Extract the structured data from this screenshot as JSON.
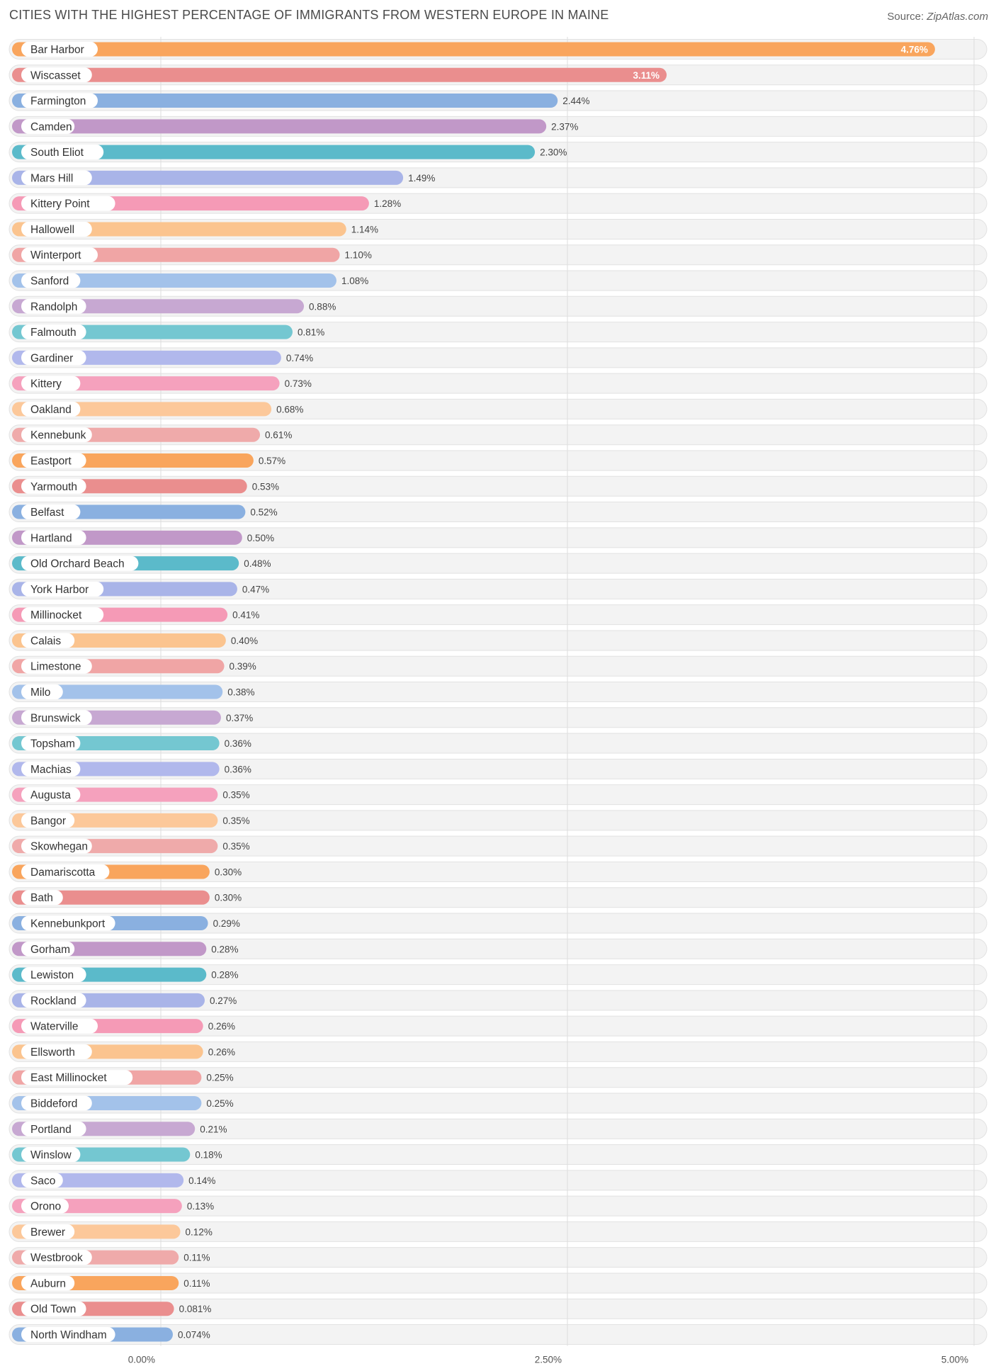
{
  "header": {
    "title": "CITIES WITH THE HIGHEST PERCENTAGE OF IMMIGRANTS FROM WESTERN EUROPE IN MAINE",
    "source_label": "Source:",
    "source_value": "ZipAtlas.com"
  },
  "chart_data": {
    "type": "bar",
    "orientation": "horizontal",
    "title": "CITIES WITH THE HIGHEST PERCENTAGE OF IMMIGRANTS FROM WESTERN EUROPE IN MAINE",
    "xlim": [
      0,
      5
    ],
    "x_ticks": [
      "0.00%",
      "2.50%",
      "5.00%"
    ],
    "x_tick_values": [
      0,
      2.5,
      5
    ],
    "grid": true,
    "palette": [
      "#f9a55d",
      "#ea8e8e",
      "#8ab0e0",
      "#c198c8",
      "#5bbaca",
      "#a9b4e8",
      "#f59ab6",
      "#fbc48f",
      "#f0a5a5",
      "#a3c2ea",
      "#c7a8d2",
      "#74c7d1",
      "#b1b8ec",
      "#f5a1bd",
      "#fcc89a",
      "#efaaaa"
    ],
    "categories": [
      "Bar Harbor",
      "Wiscasset",
      "Farmington",
      "Camden",
      "South Eliot",
      "Mars Hill",
      "Kittery Point",
      "Hallowell",
      "Winterport",
      "Sanford",
      "Randolph",
      "Falmouth",
      "Gardiner",
      "Kittery",
      "Oakland",
      "Kennebunk",
      "Eastport",
      "Yarmouth",
      "Belfast",
      "Hartland",
      "Old Orchard Beach",
      "York Harbor",
      "Millinocket",
      "Calais",
      "Limestone",
      "Milo",
      "Brunswick",
      "Topsham",
      "Machias",
      "Augusta",
      "Bangor",
      "Skowhegan",
      "Damariscotta",
      "Bath",
      "Kennebunkport",
      "Gorham",
      "Lewiston",
      "Rockland",
      "Waterville",
      "Ellsworth",
      "East Millinocket",
      "Biddeford",
      "Portland",
      "Winslow",
      "Saco",
      "Orono",
      "Brewer",
      "Westbrook",
      "Auburn",
      "Old Town",
      "North Windham"
    ],
    "values": [
      4.76,
      3.11,
      2.44,
      2.37,
      2.3,
      1.49,
      1.28,
      1.14,
      1.1,
      1.08,
      0.88,
      0.81,
      0.74,
      0.73,
      0.68,
      0.61,
      0.57,
      0.53,
      0.52,
      0.5,
      0.48,
      0.47,
      0.41,
      0.4,
      0.39,
      0.38,
      0.37,
      0.36,
      0.36,
      0.35,
      0.35,
      0.35,
      0.3,
      0.3,
      0.29,
      0.28,
      0.28,
      0.27,
      0.26,
      0.26,
      0.25,
      0.25,
      0.21,
      0.18,
      0.14,
      0.13,
      0.12,
      0.11,
      0.11,
      0.081,
      0.074
    ],
    "value_labels": [
      "4.76%",
      "3.11%",
      "2.44%",
      "2.37%",
      "2.30%",
      "1.49%",
      "1.28%",
      "1.14%",
      "1.10%",
      "1.08%",
      "0.88%",
      "0.81%",
      "0.74%",
      "0.73%",
      "0.68%",
      "0.61%",
      "0.57%",
      "0.53%",
      "0.52%",
      "0.50%",
      "0.48%",
      "0.47%",
      "0.41%",
      "0.40%",
      "0.39%",
      "0.38%",
      "0.37%",
      "0.36%",
      "0.36%",
      "0.35%",
      "0.35%",
      "0.35%",
      "0.30%",
      "0.30%",
      "0.29%",
      "0.28%",
      "0.28%",
      "0.27%",
      "0.26%",
      "0.26%",
      "0.25%",
      "0.25%",
      "0.21%",
      "0.18%",
      "0.14%",
      "0.13%",
      "0.12%",
      "0.11%",
      "0.11%",
      "0.081%",
      "0.074%"
    ]
  }
}
